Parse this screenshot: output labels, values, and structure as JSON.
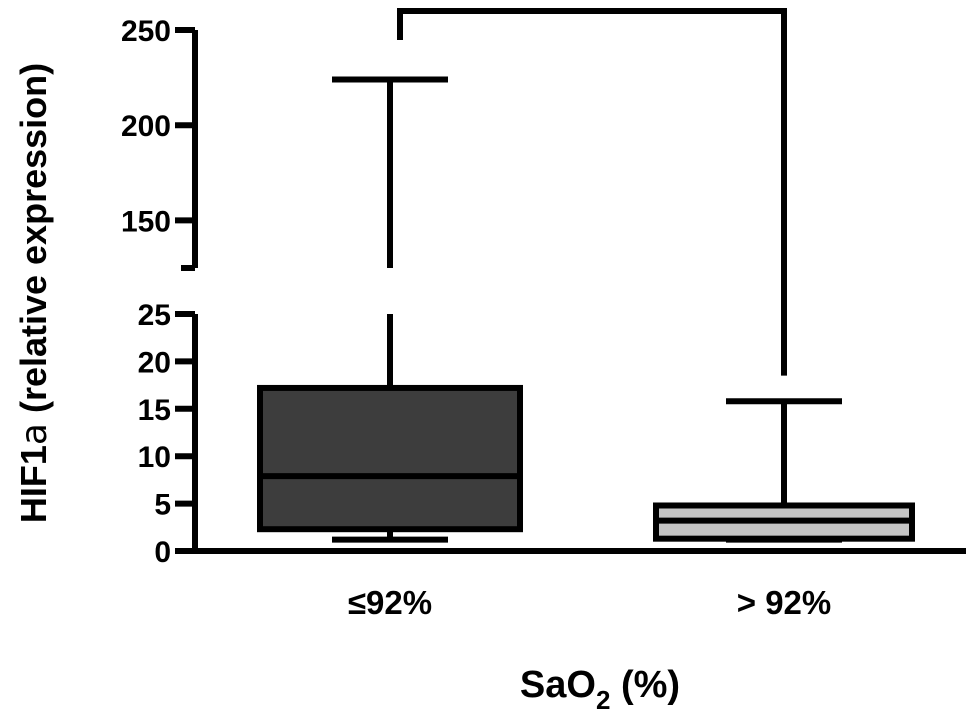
{
  "chart_data": {
    "type": "box",
    "categories": [
      "≤92%",
      "> 92%"
    ],
    "xlabel": {
      "main": "SaO",
      "sub": "2",
      "suffix": " (%)"
    },
    "ylabel": {
      "main": "HIF1",
      "greek": "a",
      "suffix": " (relative expression)"
    },
    "y_axis": {
      "broken": true,
      "lower_segment": {
        "range": [
          0,
          25
        ],
        "ticks": [
          0,
          5,
          10,
          15,
          20,
          25
        ]
      },
      "upper_segment": {
        "range": [
          125,
          250
        ],
        "ticks": [
          150,
          200,
          250
        ]
      }
    },
    "boxes": [
      {
        "category": "≤92%",
        "min": 1.2,
        "q1": 2.3,
        "median": 7.9,
        "q3": 17.2,
        "max": 224,
        "fill": "#3d3d3d"
      },
      {
        "category": "> 92%",
        "min": 1.2,
        "q1": 1.3,
        "median": 3.2,
        "q3": 4.8,
        "max": 15.8,
        "fill": "#c4c4c4"
      }
    ],
    "significance_bracket": {
      "between": [
        "≤92%",
        "> 92%"
      ],
      "label": ""
    },
    "grid": false,
    "legend": "none"
  }
}
